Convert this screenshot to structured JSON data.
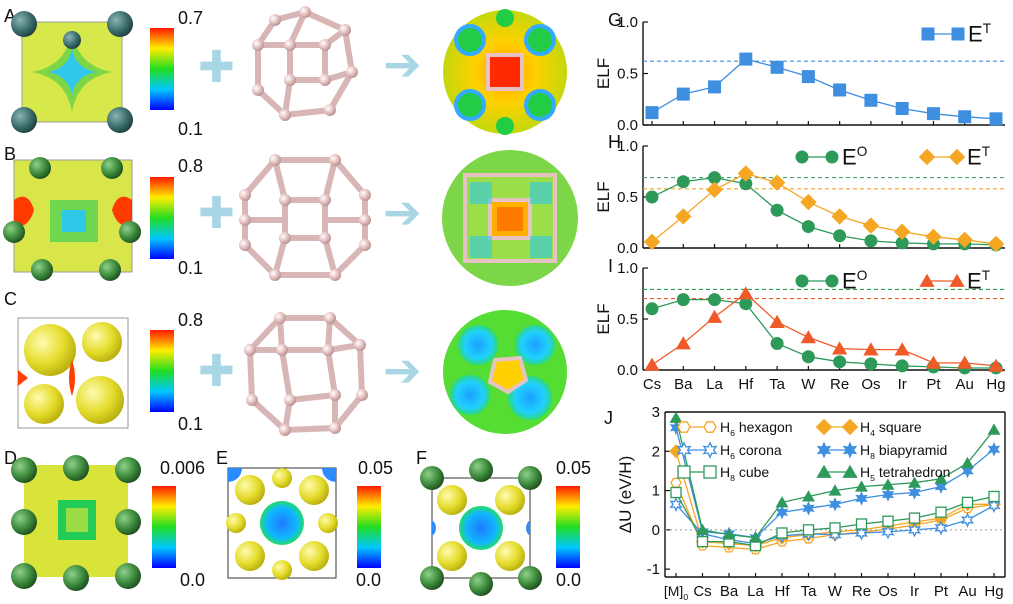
{
  "panel_letters": [
    "A",
    "B",
    "C",
    "D",
    "E",
    "F",
    "G",
    "H",
    "I",
    "J"
  ],
  "colorbars": {
    "A": {
      "max": "0.7",
      "min": "0.1"
    },
    "B": {
      "max": "0.8",
      "min": "0.1"
    },
    "C": {
      "max": "0.8",
      "min": "0.1"
    },
    "D": {
      "max": "0.006",
      "min": "0.0"
    },
    "E": {
      "max": "0.05",
      "min": "0.0"
    },
    "F": {
      "max": "0.05",
      "min": "0.0"
    }
  },
  "colors": {
    "ET_G": "#3f8fe0",
    "EO": "#2e9a5a",
    "ET_H": "#f5a623",
    "ET_I": "#f05a28",
    "hexagon": "#f5a623",
    "square": "#f5a623",
    "corona": "#3f8fe0",
    "bipyramid": "#3f8fe0",
    "cube": "#2e9a5a",
    "tetrahedron": "#2e9a5a"
  },
  "chart_data": [
    {
      "panel": "G",
      "type": "line",
      "categories": [
        "Cs",
        "Ba",
        "La",
        "Hf",
        "Ta",
        "W",
        "Re",
        "Os",
        "Ir",
        "Pt",
        "Au",
        "Hg"
      ],
      "ylabel": "ELF",
      "ylim": [
        0,
        1.0
      ],
      "yticks": [
        "0.0",
        "0.5",
        "1.0"
      ],
      "ref_lines": [
        {
          "y": 0.62,
          "color": "#3f8fe0"
        }
      ],
      "series": [
        {
          "name": "E",
          "sup": "T",
          "marker": "square",
          "values": [
            0.12,
            0.3,
            0.37,
            0.64,
            0.56,
            0.47,
            0.34,
            0.24,
            0.16,
            0.11,
            0.08,
            0.06
          ]
        }
      ]
    },
    {
      "panel": "H",
      "type": "line",
      "categories": [
        "Cs",
        "Ba",
        "La",
        "Hf",
        "Ta",
        "W",
        "Re",
        "Os",
        "Ir",
        "Pt",
        "Au",
        "Hg"
      ],
      "ylabel": "ELF",
      "ylim": [
        0,
        1.0
      ],
      "yticks": [
        "0.0",
        "0.5",
        "1.0"
      ],
      "ref_lines": [
        {
          "y": 0.69,
          "color": "#2e9a5a"
        },
        {
          "y": 0.58,
          "color": "#f5a623"
        }
      ],
      "series": [
        {
          "name": "E",
          "sup": "O",
          "marker": "circle",
          "values": [
            0.5,
            0.65,
            0.69,
            0.63,
            0.37,
            0.21,
            0.12,
            0.07,
            0.05,
            0.04,
            0.04,
            0.03
          ]
        },
        {
          "name": "E",
          "sup": "T",
          "marker": "diamond",
          "values": [
            0.06,
            0.31,
            0.57,
            0.73,
            0.64,
            0.45,
            0.31,
            0.22,
            0.16,
            0.11,
            0.08,
            0.04
          ]
        }
      ]
    },
    {
      "panel": "I",
      "type": "line",
      "categories": [
        "Cs",
        "Ba",
        "La",
        "Hf",
        "Ta",
        "W",
        "Re",
        "Os",
        "Ir",
        "Pt",
        "Au",
        "Hg"
      ],
      "ylabel": "ELF",
      "ylim": [
        0,
        1.0
      ],
      "yticks": [
        "0.0",
        "0.5",
        "1.0"
      ],
      "ref_lines": [
        {
          "y": 0.79,
          "color": "#2e9a5a"
        },
        {
          "y": 0.7,
          "color": "#f05a28"
        }
      ],
      "series": [
        {
          "name": "E",
          "sup": "O",
          "marker": "circle",
          "values": [
            0.6,
            0.69,
            0.69,
            0.65,
            0.26,
            0.13,
            0.08,
            0.06,
            0.04,
            0.03,
            0.02,
            0.02
          ]
        },
        {
          "name": "E",
          "sup": "T",
          "marker": "triangle",
          "values": [
            0.05,
            0.26,
            0.52,
            0.75,
            0.47,
            0.32,
            0.21,
            0.2,
            0.2,
            0.07,
            0.07,
            0.04
          ]
        }
      ]
    },
    {
      "panel": "J",
      "type": "line",
      "categories": [
        "[M]0",
        "Cs",
        "Ba",
        "La",
        "Hf",
        "Ta",
        "W",
        "Re",
        "Os",
        "Ir",
        "Pt",
        "Au",
        "Hg"
      ],
      "ylabel": "ΔU (eV/H)",
      "ylim": [
        -1.2,
        3.0
      ],
      "yticks": [
        "-1",
        "0",
        "1",
        "2",
        "3"
      ],
      "series": [
        {
          "name": "H",
          "sub": "6",
          "suffix": " hexagon",
          "marker": "hexagon-open",
          "values": [
            1.2,
            -0.4,
            -0.45,
            -0.5,
            -0.3,
            -0.22,
            -0.12,
            -0.06,
            0.02,
            0.12,
            0.25,
            0.55,
            0.65
          ]
        },
        {
          "name": "H",
          "sub": "4",
          "suffix": " square",
          "marker": "diamond",
          "values": [
            2.0,
            -0.3,
            -0.35,
            -0.4,
            -0.2,
            -0.12,
            -0.05,
            0.0,
            0.1,
            0.2,
            0.3,
            0.65,
            0.65
          ]
        },
        {
          "name": "H",
          "sub": "6",
          "suffix": " corona",
          "marker": "star6-open",
          "values": [
            0.65,
            -0.1,
            -0.25,
            -0.35,
            -0.15,
            -0.1,
            -0.12,
            -0.08,
            -0.05,
            0.0,
            0.05,
            0.25,
            0.62
          ]
        },
        {
          "name": "H",
          "sub": "8",
          "suffix": " biapyramid",
          "marker": "star6",
          "values": [
            2.6,
            -0.05,
            -0.1,
            -0.2,
            0.45,
            0.55,
            0.65,
            0.8,
            0.9,
            0.95,
            1.1,
            1.5,
            2.05
          ]
        },
        {
          "name": "H",
          "sub": "8",
          "suffix": " cube",
          "marker": "square-open",
          "values": [
            0.95,
            -0.3,
            -0.3,
            -0.4,
            -0.08,
            0.0,
            0.05,
            0.15,
            0.22,
            0.3,
            0.45,
            0.7,
            0.85
          ]
        },
        {
          "name": "H",
          "sub": "5",
          "suffix": " tetrahedron",
          "marker": "triangle",
          "values": [
            2.85,
            0.0,
            -0.12,
            -0.2,
            0.7,
            0.85,
            1.0,
            1.1,
            1.15,
            1.2,
            1.3,
            1.7,
            2.55
          ]
        }
      ]
    }
  ]
}
